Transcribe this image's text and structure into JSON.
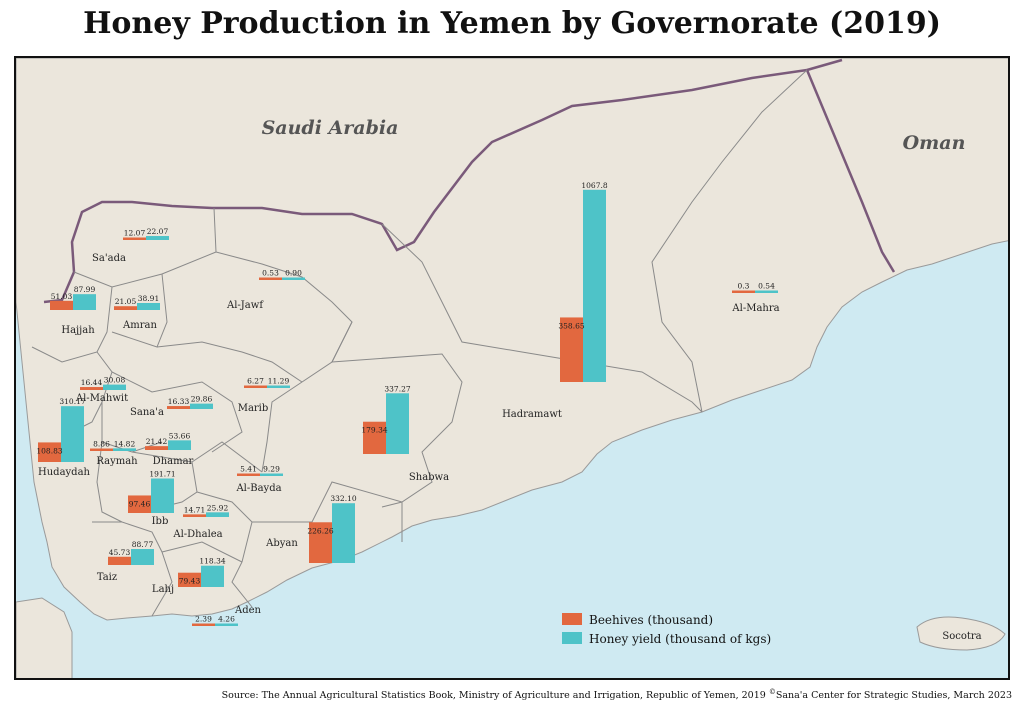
{
  "title": "Honey Production in Yemen by Governorate (2019)",
  "countries": {
    "saudi": "Saudi Arabia",
    "oman": "Oman",
    "socotra": "Socotra"
  },
  "legend": {
    "beehives": "Beehives (thousand)",
    "honey": "Honey yield (thousand of kgs)"
  },
  "colors": {
    "beehives": "#e2683f",
    "honey": "#4ec3c8",
    "land": "#ebe6dc",
    "sea": "#cfeaf2",
    "border": "#7a5a7a"
  },
  "source_text": "Source: The Annual Agricultural Statistics Book, Ministry of Agriculture and Irrigation, Republic of Yemen, 2019",
  "credit_symbol": "©",
  "credit_text": "Sana'a Center for Strategic Studies, March 2023",
  "chart_data": {
    "type": "bar",
    "series": [
      {
        "name": "Beehives (thousand)",
        "key": "beehives"
      },
      {
        "name": "Honey yield (thousand of kgs)",
        "key": "honey"
      }
    ],
    "governorates": [
      {
        "name": "Sa'ada",
        "beehives": "12.07",
        "honey": "22.07"
      },
      {
        "name": "Hajjah",
        "beehives": "51.03",
        "honey": "87.99"
      },
      {
        "name": "Amran",
        "beehives": "21.05",
        "honey": "38.91"
      },
      {
        "name": "Al-Jawf",
        "beehives": "0.53",
        "honey": "0.90"
      },
      {
        "name": "Al-Mahra",
        "beehives": "0.3",
        "honey": "0.54"
      },
      {
        "name": "Hadramawt",
        "beehives": "358.65",
        "honey": "1067.8"
      },
      {
        "name": "Al-Mahwit",
        "beehives": "16.44",
        "honey": "30.08"
      },
      {
        "name": "Sana'a",
        "beehives": "16.33",
        "honey": "29.86"
      },
      {
        "name": "Marib",
        "beehives": "6.27",
        "honey": "11.29"
      },
      {
        "name": "Hudaydah",
        "beehives": "108.83",
        "honey": "310.17"
      },
      {
        "name": "Raymah",
        "beehives": "8.86",
        "honey": "14.82"
      },
      {
        "name": "Dhamar",
        "beehives": "21.42",
        "honey": "53.66"
      },
      {
        "name": "Shabwa",
        "beehives": "179.34",
        "honey": "337.27"
      },
      {
        "name": "Al-Bayda",
        "beehives": "5.41",
        "honey": "9.29"
      },
      {
        "name": "Ibb",
        "beehives": "97.46",
        "honey": "191.71"
      },
      {
        "name": "Al-Dhalea",
        "beehives": "14.71",
        "honey": "25.92"
      },
      {
        "name": "Abyan",
        "beehives": "226.26",
        "honey": "332.10"
      },
      {
        "name": "Taiz",
        "beehives": "45.73",
        "honey": "88.77"
      },
      {
        "name": "Lahj",
        "beehives": "79.43",
        "honey": "118.34"
      },
      {
        "name": "Aden",
        "beehives": "2.39",
        "honey": "4.26"
      }
    ]
  }
}
